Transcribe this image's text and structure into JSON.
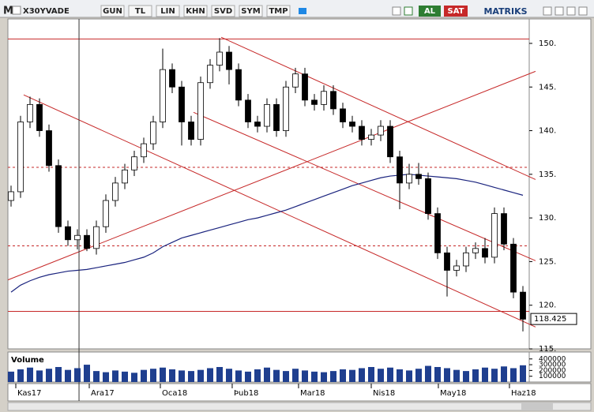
{
  "toolbar": {
    "logo": "M",
    "symbol": "X30YVADE",
    "buttons": [
      "GUN",
      "TL",
      "LIN",
      "KHN",
      "SVD",
      "SYM",
      "TMP"
    ],
    "buy": "AL",
    "sell": "SAT",
    "brand": "MATRIKS"
  },
  "chart_data": [
    {
      "type": "candlestick",
      "xlim": [
        -0.333,
        54.667
      ],
      "ylim": [
        115,
        152.8
      ],
      "yticks": [
        {
          "value": 150,
          "label": "150."
        },
        {
          "value": 145,
          "label": "145."
        },
        {
          "value": 140,
          "label": "140."
        },
        {
          "value": 135,
          "label": "135."
        },
        {
          "value": 130,
          "label": "130."
        },
        {
          "value": 125,
          "label": "125."
        },
        {
          "value": 120,
          "label": "120."
        },
        {
          "value": 115,
          "label": "115."
        }
      ],
      "xticks": [
        {
          "value": 0.5,
          "label": "Kas17"
        },
        {
          "value": 8.25,
          "label": "Ara17"
        },
        {
          "value": 15.75,
          "label": "Oca18"
        },
        {
          "value": 23.33,
          "label": "Þub18"
        },
        {
          "value": 30.33,
          "label": "Mar18"
        },
        {
          "value": 38,
          "label": "Nis18"
        },
        {
          "value": 45.08,
          "label": "May18"
        },
        {
          "value": 52.58,
          "label": "Haz18"
        }
      ],
      "last_price": 118.425,
      "open": [
        132,
        133,
        141,
        143,
        140,
        136,
        129,
        127.5,
        128,
        126.5,
        129,
        132,
        134,
        135.5,
        137,
        138.5,
        141,
        147,
        145,
        141,
        139,
        145.5,
        147.5,
        149,
        147,
        143.5,
        141,
        140.5,
        143,
        140,
        145,
        146.5,
        143.5,
        143,
        144.5,
        142.5,
        141,
        140.5,
        139,
        139.5,
        140.5,
        137,
        134,
        135,
        134.5,
        130.5,
        126,
        124,
        124.5,
        126,
        126.5,
        125.5,
        130.5,
        127,
        121.5
      ],
      "high": [
        133.7,
        141.7,
        143.9,
        143.7,
        140.7,
        136.7,
        129.7,
        128.7,
        128.7,
        129.7,
        132.7,
        134.7,
        136.2,
        137.7,
        139.2,
        141.7,
        149.4,
        147.7,
        145.7,
        141.7,
        146.2,
        148.2,
        150.6,
        149.7,
        147.7,
        144.2,
        141.7,
        143.7,
        143.7,
        145.7,
        147.2,
        147.2,
        144.2,
        145.2,
        145.2,
        143.2,
        141.7,
        141.2,
        140.2,
        141.2,
        141.2,
        137.7,
        136.2,
        136.3,
        135.2,
        131.2,
        126.7,
        125.2,
        126.7,
        127.2,
        127.7,
        131.2,
        131.2,
        127.7,
        122.2
      ],
      "low": [
        131.3,
        132.3,
        140.3,
        139.3,
        135.3,
        128.3,
        126.8,
        126.4,
        126.2,
        125.8,
        128.3,
        131.3,
        133.3,
        134.8,
        136.3,
        137.8,
        140.3,
        144.3,
        138.3,
        138.3,
        138.3,
        144.8,
        146.8,
        145.3,
        142.8,
        140.3,
        139.8,
        139.8,
        139.3,
        139.3,
        144.3,
        142.8,
        142.3,
        142.3,
        141.8,
        140.3,
        139.8,
        138.3,
        138.3,
        138.8,
        136.3,
        131,
        133.3,
        133.8,
        129.8,
        125.3,
        121,
        123.3,
        123.8,
        125.3,
        124.8,
        124.8,
        126.3,
        120.8,
        117
      ],
      "close": [
        133,
        141,
        143,
        140,
        136,
        129,
        127.5,
        128,
        126.5,
        129,
        132,
        134,
        135.5,
        137,
        138.5,
        141,
        147,
        145,
        141,
        139,
        145.5,
        147.5,
        149,
        147,
        143.5,
        141,
        140.5,
        143,
        140,
        145,
        146.5,
        143.5,
        143,
        144.5,
        142.5,
        141,
        140.5,
        139,
        139.5,
        140.5,
        137,
        134,
        135,
        134.5,
        130.5,
        126,
        124,
        124.5,
        126,
        126.5,
        125.5,
        130.5,
        127,
        121.5,
        118.4
      ],
      "moving_average": {
        "color": "#1a237e",
        "values": [
          121.5,
          122.3,
          122.8,
          123.2,
          123.5,
          123.7,
          123.9,
          124.0,
          124.1,
          124.3,
          124.5,
          124.7,
          124.9,
          125.2,
          125.5,
          126.0,
          126.7,
          127.2,
          127.7,
          128.0,
          128.3,
          128.6,
          128.9,
          129.2,
          129.5,
          129.8,
          130.0,
          130.3,
          130.6,
          130.9,
          131.3,
          131.7,
          132.1,
          132.5,
          132.9,
          133.3,
          133.7,
          134.0,
          134.3,
          134.6,
          134.8,
          134.9,
          135.0,
          134.9,
          134.8,
          134.7,
          134.6,
          134.5,
          134.3,
          134.1,
          133.8,
          133.5,
          133.2,
          132.9,
          132.6
        ]
      },
      "trend_lines": [
        {
          "x": [
            -0.33,
            55.33
          ],
          "y": [
            122.9,
            146.8
          ]
        },
        {
          "x": [
            22.17,
            55.33
          ],
          "y": [
            150.7,
            134.4
          ]
        },
        {
          "x": [
            1.33,
            55.33
          ],
          "y": [
            144.1,
            117.5
          ]
        },
        {
          "x": [
            19.25,
            55.33
          ],
          "y": [
            142.1,
            125.1
          ]
        }
      ],
      "horizontal_lines": [
        {
          "value": 150.5,
          "dashed": false
        },
        {
          "value": 135.8,
          "dashed": true
        },
        {
          "value": 126.8,
          "dashed": true
        },
        {
          "value": 119.3,
          "dashed": false
        }
      ],
      "line_color": "#c62828",
      "cursor_x": 7.17
    },
    {
      "type": "bar",
      "title": "Volume",
      "color": "#1f3f8f",
      "ylim": [
        0,
        520000
      ],
      "yticks": [
        400000,
        300000,
        200000,
        100000
      ],
      "values": [
        180000,
        220000,
        250000,
        200000,
        230000,
        260000,
        210000,
        240000,
        300000,
        190000,
        170000,
        200000,
        180000,
        160000,
        210000,
        230000,
        250000,
        220000,
        200000,
        190000,
        210000,
        240000,
        260000,
        230000,
        200000,
        180000,
        220000,
        250000,
        210000,
        190000,
        230000,
        200000,
        180000,
        170000,
        190000,
        220000,
        210000,
        240000,
        260000,
        230000,
        250000,
        220000,
        200000,
        230000,
        280000,
        260000,
        240000,
        210000,
        190000,
        220000,
        250000,
        230000,
        270000,
        240000,
        290000
      ]
    }
  ]
}
